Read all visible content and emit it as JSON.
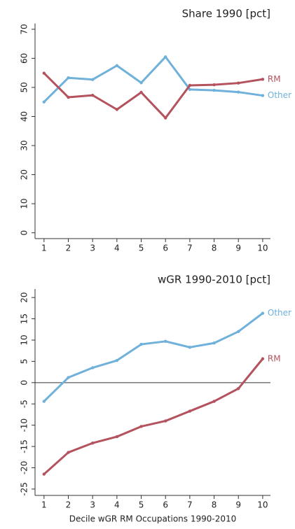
{
  "chart_data": [
    {
      "type": "line",
      "title": "Share 1990 [pct]",
      "x": [
        1,
        2,
        3,
        4,
        5,
        6,
        7,
        8,
        9,
        10
      ],
      "series": [
        {
          "name": "Other",
          "color": "#6fb1da",
          "values": [
            45,
            53.3,
            52.7,
            57.5,
            51.6,
            60.5,
            49.3,
            49,
            48.4,
            47.2
          ]
        },
        {
          "name": "RM",
          "color": "#b4525e",
          "values": [
            54.9,
            46.6,
            47.3,
            42.4,
            48.3,
            39.5,
            50.7,
            50.9,
            51.5,
            52.8
          ]
        }
      ],
      "xlim": [
        0.63,
        10.32
      ],
      "xticks": [
        1,
        2,
        3,
        4,
        5,
        6,
        7,
        8,
        9,
        10
      ],
      "ylim": [
        -2,
        72
      ],
      "yticks": [
        0,
        10,
        20,
        30,
        40,
        50,
        60,
        70
      ],
      "zero_line": false
    },
    {
      "type": "line",
      "title": "wGR 1990-2010 [pct]",
      "x_label": "Decile wGR RM Occupations 1990-2010",
      "x": [
        1,
        2,
        3,
        4,
        5,
        6,
        7,
        8,
        9,
        10
      ],
      "series": [
        {
          "name": "Other",
          "color": "#6fb1da",
          "values": [
            -4.4,
            1.2,
            3.5,
            5.2,
            9,
            9.7,
            8.3,
            9.3,
            12,
            16.3
          ]
        },
        {
          "name": "RM",
          "color": "#b4525e",
          "values": [
            -21.5,
            -16.4,
            -14.2,
            -12.7,
            -10.3,
            -9,
            -6.7,
            -4.4,
            -1.4,
            5.6
          ]
        }
      ],
      "xlim": [
        0.63,
        10.32
      ],
      "xticks": [
        1,
        2,
        3,
        4,
        5,
        6,
        7,
        8,
        9,
        10
      ],
      "ylim": [
        -26.5,
        22
      ],
      "yticks": [
        -25,
        -20,
        -15,
        -10,
        -5,
        0,
        5,
        10,
        15,
        20
      ],
      "zero_line": true
    }
  ]
}
